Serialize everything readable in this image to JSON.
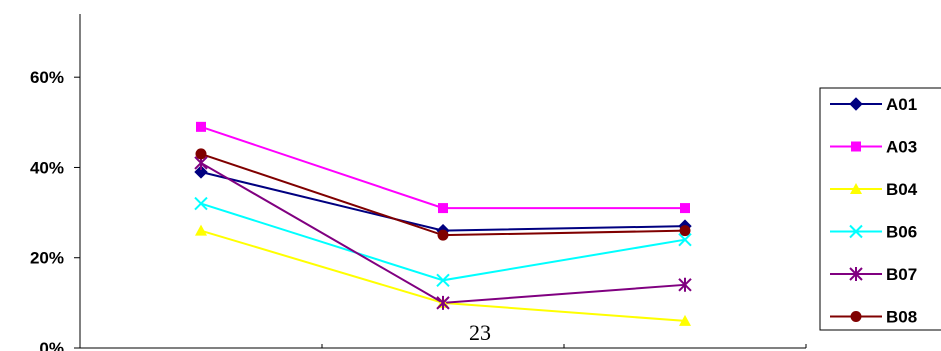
{
  "chart_data": {
    "type": "line",
    "x_count": 3,
    "categories": [
      "",
      "",
      ""
    ],
    "ylim": [
      0,
      0.74
    ],
    "yticks": [
      0,
      0.2,
      0.4,
      0.6
    ],
    "ytick_labels": [
      "0%",
      "20%",
      "40%",
      "60%"
    ],
    "grid": false,
    "legend_position": "right",
    "series": [
      {
        "name": "A01",
        "color": "#000080",
        "marker": "diamond",
        "values": [
          0.39,
          0.26,
          0.27
        ]
      },
      {
        "name": "A03",
        "color": "#FF00FF",
        "marker": "square",
        "values": [
          0.49,
          0.31,
          0.31
        ]
      },
      {
        "name": "B04",
        "color": "#FFFF00",
        "marker": "triangle",
        "values": [
          0.26,
          0.1,
          0.06
        ]
      },
      {
        "name": "B06",
        "color": "#00FFFF",
        "marker": "x",
        "values": [
          0.32,
          0.15,
          0.24
        ]
      },
      {
        "name": "B07",
        "color": "#800080",
        "marker": "star",
        "values": [
          0.41,
          0.1,
          0.14
        ]
      },
      {
        "name": "B08",
        "color": "#800000",
        "marker": "circle",
        "values": [
          0.43,
          0.25,
          0.26
        ]
      }
    ],
    "overlay_text": "23"
  }
}
